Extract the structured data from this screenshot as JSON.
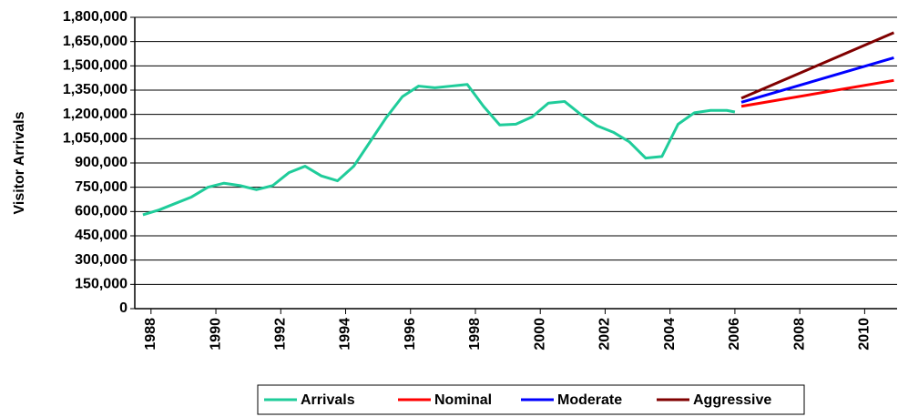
{
  "chart_data": {
    "type": "line",
    "y_label": "Visitor Arrivals",
    "xlim": [
      1987.5,
      2011
    ],
    "xticks": [
      1988,
      1990,
      1992,
      1994,
      1996,
      1998,
      2000,
      2002,
      2004,
      2006,
      2008,
      2010
    ],
    "ylim": [
      0,
      1800000
    ],
    "yticks": [
      0,
      {
        "value": 150000,
        "label": "150,000"
      },
      {
        "value": 300000,
        "label": "300,000"
      },
      {
        "value": 450000,
        "label": "450,000"
      },
      {
        "value": 600000,
        "label": "600,000"
      },
      {
        "value": 750000,
        "label": "750,000"
      },
      {
        "value": 900000,
        "label": "900,000"
      },
      {
        "value": 1050000,
        "label": "1,050,000"
      },
      {
        "value": 1200000,
        "label": "1,200,000"
      },
      {
        "value": 1350000,
        "label": "1,350,000"
      },
      {
        "value": 1500000,
        "label": "1,500,000"
      },
      {
        "value": 1650000,
        "label": "1,650,000"
      },
      {
        "value": 1800000,
        "label": "1,800,000"
      }
    ],
    "grid": true,
    "legend": "bottom",
    "series": [
      {
        "name": "Arrivals",
        "color": "#1fcc9a",
        "x": [
          1987.75,
          1988.25,
          1988.75,
          1989.25,
          1989.75,
          1990.25,
          1990.75,
          1991.25,
          1991.75,
          1992.25,
          1992.75,
          1993.25,
          1993.75,
          1994.25,
          1994.75,
          1995.25,
          1995.75,
          1996.25,
          1996.75,
          1997.25,
          1997.75,
          1998.25,
          1998.75,
          1999.25,
          1999.75,
          2000.25,
          2000.75,
          2001.25,
          2001.75,
          2002.25,
          2002.75,
          2003.25,
          2003.75,
          2004.25,
          2004.75,
          2005.25,
          2005.75,
          2006.0
        ],
        "values": [
          580000,
          610000,
          650000,
          690000,
          750000,
          775000,
          760000,
          735000,
          760000,
          840000,
          880000,
          820000,
          790000,
          880000,
          1030000,
          1180000,
          1310000,
          1375000,
          1365000,
          1375000,
          1385000,
          1250000,
          1135000,
          1140000,
          1185000,
          1270000,
          1280000,
          1200000,
          1130000,
          1090000,
          1030000,
          930000,
          940000,
          1140000,
          1210000,
          1225000,
          1225000,
          1215000
        ]
      },
      {
        "name": "Nominal",
        "color": "#ff0000",
        "x": [
          2006.2,
          2010.9
        ],
        "values": [
          1250000,
          1410000
        ]
      },
      {
        "name": "Moderate",
        "color": "#0000ff",
        "x": [
          2006.2,
          2010.9
        ],
        "values": [
          1275000,
          1550000
        ]
      },
      {
        "name": "Aggressive",
        "color": "#800000",
        "x": [
          2006.2,
          2010.9
        ],
        "values": [
          1300000,
          1705000
        ]
      }
    ]
  }
}
